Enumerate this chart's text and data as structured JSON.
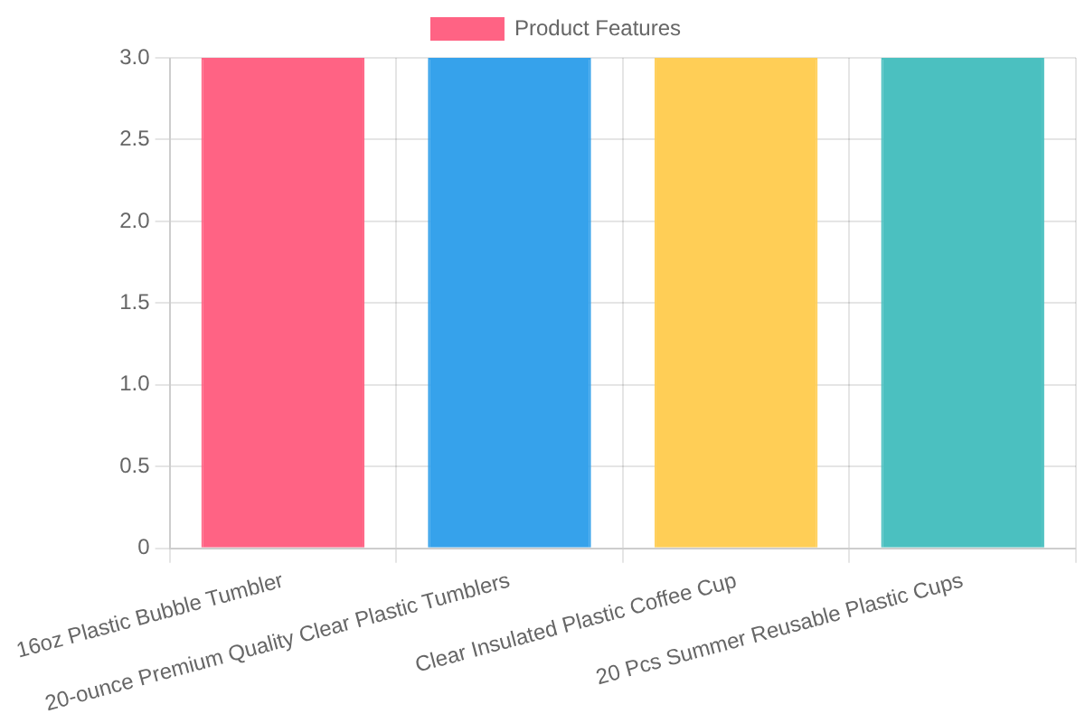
{
  "chart_data": {
    "type": "bar",
    "categories": [
      "16oz Plastic Bubble Tumbler",
      "20-ounce Premium Quality Clear Plastic Tumblers",
      "Clear Insulated Plastic Coffee Cup",
      "20 Pcs Summer Reusable Plastic Cups"
    ],
    "series": [
      {
        "name": "Product Features",
        "colors": [
          "#ff6384",
          "#36a2eb",
          "#ffce56",
          "#4bc0c0"
        ],
        "values": [
          3,
          3,
          3,
          3
        ]
      }
    ],
    "ylim": [
      0,
      3
    ],
    "yticks": [
      0,
      0.5,
      {
        "value": 1,
        "label": "1.0"
      },
      1.5,
      {
        "value": 2,
        "label": "2.0"
      },
      2.5,
      {
        "value": 3,
        "label": "3.0"
      }
    ],
    "grid": true,
    "legend": "top"
  }
}
